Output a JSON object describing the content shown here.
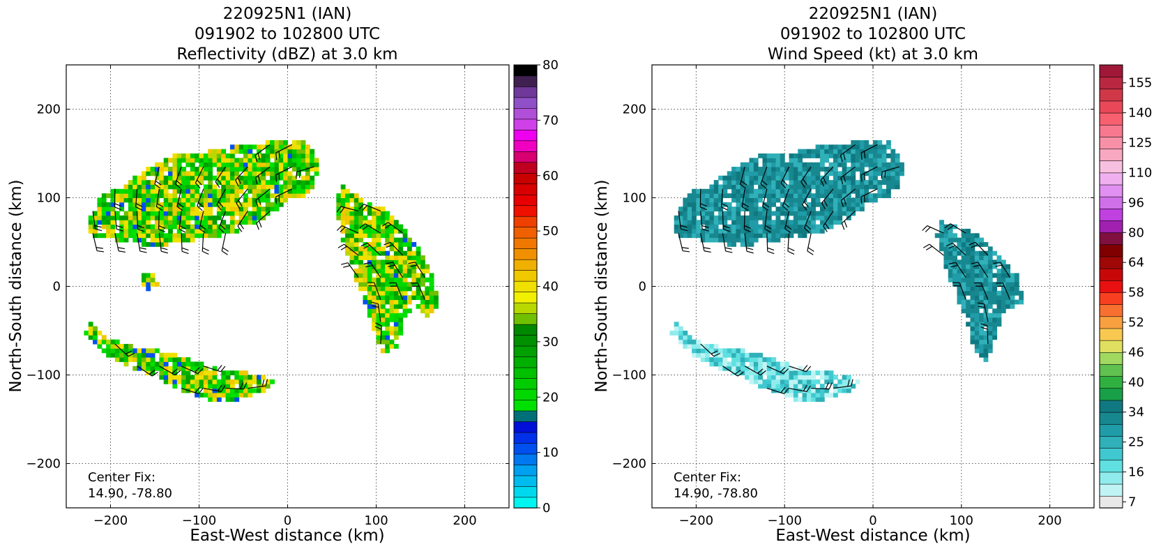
{
  "figure": {
    "panels": [
      {
        "title_lines": [
          "220925N1 (IAN)",
          "091902 to 102800 UTC",
          "Reflectivity (dBZ) at 3.0 km"
        ],
        "xlabel": "East-West distance (km)",
        "ylabel": "North-South distance (km)",
        "center_fix_label": "Center Fix:",
        "center_fix_value": "14.90, -78.80"
      },
      {
        "title_lines": [
          "220925N1 (IAN)",
          "091902 to 102800 UTC",
          "Wind Speed (kt) at 3.0 km"
        ],
        "xlabel": "East-West distance (km)",
        "ylabel": "North-South distance (km)",
        "center_fix_label": "Center Fix:",
        "center_fix_value": "14.90, -78.80"
      }
    ]
  },
  "chart_data": [
    {
      "type": "heatmap",
      "title": "220925N1 (IAN) 091902 to 102800 UTC Reflectivity (dBZ) at 3.0 km",
      "xlabel": "East-West distance (km)",
      "ylabel": "North-South distance (km)",
      "xlim": [
        -250,
        250
      ],
      "ylim": [
        -250,
        250
      ],
      "xticks": [
        -200,
        -100,
        0,
        100,
        200
      ],
      "yticks": [
        -200,
        -100,
        0,
        100,
        200
      ],
      "grid": true,
      "colorbar": {
        "min": 0,
        "max": 80,
        "tick_values": [
          0,
          10,
          20,
          30,
          40,
          50,
          60,
          70,
          80
        ],
        "tick_labels": [
          "0",
          "10",
          "20",
          "30",
          "40",
          "50",
          "60",
          "70",
          "80"
        ],
        "colors": [
          "#00f5f0",
          "#00d8ee",
          "#00bcee",
          "#00a0f0",
          "#0078f0",
          "#0050f0",
          "#0030e8",
          "#0010d8",
          "#007078",
          "#00e000",
          "#00d800",
          "#00cc00",
          "#00c000",
          "#00b000",
          "#00a000",
          "#009000",
          "#008800",
          "#70c000",
          "#b8d800",
          "#f0f000",
          "#f0e000",
          "#f0c800",
          "#f0b000",
          "#f09000",
          "#f07800",
          "#f06000",
          "#f04000",
          "#f01000",
          "#e80000",
          "#d80000",
          "#c80000",
          "#c00020",
          "#d80070",
          "#f000c0",
          "#f000f0",
          "#d040e8",
          "#b050d8",
          "#9050c8",
          "#703898",
          "#402050",
          "#000000"
        ]
      },
      "regions": [
        {
          "name": "north band",
          "points": [
            [
              -225,
              75
            ],
            [
              -215,
              95
            ],
            [
              -205,
              110
            ],
            [
              -185,
              112
            ],
            [
              -170,
              125
            ],
            [
              -155,
              135
            ],
            [
              -130,
              148
            ],
            [
              -95,
              152
            ],
            [
              -60,
              158
            ],
            [
              -20,
              163
            ],
            [
              15,
              165
            ],
            [
              30,
              160
            ],
            [
              35,
              130
            ],
            [
              25,
              105
            ],
            [
              0,
              95
            ],
            [
              -30,
              75
            ],
            [
              -60,
              60
            ],
            [
              -90,
              55
            ],
            [
              -120,
              50
            ],
            [
              -150,
              45
            ],
            [
              -180,
              50
            ],
            [
              -210,
              55
            ],
            [
              -225,
              60
            ]
          ],
          "typical_dbz": 30
        },
        {
          "name": "eastern band",
          "points": [
            [
              60,
              115
            ],
            [
              75,
              105
            ],
            [
              90,
              95
            ],
            [
              105,
              90
            ],
            [
              120,
              80
            ],
            [
              135,
              60
            ],
            [
              150,
              40
            ],
            [
              165,
              10
            ],
            [
              170,
              -20
            ],
            [
              160,
              -35
            ],
            [
              145,
              -20
            ],
            [
              130,
              -40
            ],
            [
              125,
              -70
            ],
            [
              110,
              -80
            ],
            [
              100,
              -60
            ],
            [
              90,
              -25
            ],
            [
              80,
              0
            ],
            [
              70,
              30
            ],
            [
              60,
              60
            ],
            [
              55,
              90
            ]
          ],
          "typical_dbz": 28
        },
        {
          "name": "southwest band",
          "points": [
            [
              -225,
              -35
            ],
            [
              -210,
              -55
            ],
            [
              -185,
              -65
            ],
            [
              -160,
              -70
            ],
            [
              -130,
              -75
            ],
            [
              -100,
              -85
            ],
            [
              -70,
              -95
            ],
            [
              -40,
              -98
            ],
            [
              -15,
              -105
            ],
            [
              -25,
              -118
            ],
            [
              -55,
              -128
            ],
            [
              -90,
              -128
            ],
            [
              -120,
              -118
            ],
            [
              -150,
              -100
            ],
            [
              -180,
              -90
            ],
            [
              -210,
              -75
            ],
            [
              -228,
              -55
            ]
          ],
          "typical_dbz": 32
        },
        {
          "name": "small western cluster",
          "points": [
            [
              -165,
              15
            ],
            [
              -150,
              15
            ],
            [
              -145,
              0
            ],
            [
              -160,
              -5
            ],
            [
              -168,
              5
            ]
          ],
          "typical_dbz": 22
        }
      ]
    },
    {
      "type": "heatmap",
      "title": "220925N1 (IAN) 091902 to 102800 UTC Wind Speed (kt) at 3.0 km",
      "xlabel": "East-West distance (km)",
      "ylabel": "North-South distance (km)",
      "xlim": [
        -250,
        250
      ],
      "ylim": [
        -250,
        250
      ],
      "xticks": [
        -200,
        -100,
        0,
        100,
        200
      ],
      "yticks": [
        -200,
        -100,
        0,
        100,
        200
      ],
      "grid": true,
      "colorbar": {
        "tick_labels": [
          "7",
          "16",
          "25",
          "34",
          "40",
          "46",
          "52",
          "58",
          "64",
          "80",
          "96",
          "110",
          "125",
          "140",
          "155"
        ],
        "colors": [
          "#e8e8e8",
          "#c0f4f4",
          "#90ecec",
          "#60e0e0",
          "#40c8d0",
          "#30b0b8",
          "#209ca8",
          "#188890",
          "#107880",
          "#18a048",
          "#30b040",
          "#60c050",
          "#a0d860",
          "#e0e060",
          "#f8c850",
          "#f8a040",
          "#f87030",
          "#f84020",
          "#e81010",
          "#c80808",
          "#a00808",
          "#800000",
          "#801040",
          "#a020b0",
          "#c040e0",
          "#d070e8",
          "#e090f0",
          "#f0b0f0",
          "#f8c0e0",
          "#f8a8c0",
          "#f890a8",
          "#f87890",
          "#f86070",
          "#e84858",
          "#d03848",
          "#b82840",
          "#a01838"
        ]
      },
      "regions": [
        {
          "name": "north band",
          "points": [
            [
              -225,
              75
            ],
            [
              -215,
              95
            ],
            [
              -205,
              110
            ],
            [
              -185,
              112
            ],
            [
              -170,
              125
            ],
            [
              -155,
              135
            ],
            [
              -130,
              148
            ],
            [
              -95,
              152
            ],
            [
              -60,
              158
            ],
            [
              -20,
              163
            ],
            [
              15,
              165
            ],
            [
              30,
              160
            ],
            [
              35,
              130
            ],
            [
              25,
              105
            ],
            [
              0,
              95
            ],
            [
              -30,
              75
            ],
            [
              -60,
              60
            ],
            [
              -90,
              55
            ],
            [
              -120,
              50
            ],
            [
              -150,
              45
            ],
            [
              -180,
              50
            ],
            [
              -210,
              55
            ],
            [
              -225,
              60
            ]
          ],
          "typical_kt": 22
        },
        {
          "name": "eastern band",
          "points": [
            [
              75,
              75
            ],
            [
              90,
              70
            ],
            [
              105,
              65
            ],
            [
              120,
              60
            ],
            [
              135,
              45
            ],
            [
              150,
              30
            ],
            [
              165,
              10
            ],
            [
              170,
              -20
            ],
            [
              150,
              -25
            ],
            [
              140,
              -50
            ],
            [
              130,
              -85
            ],
            [
              115,
              -75
            ],
            [
              110,
              -50
            ],
            [
              100,
              -25
            ],
            [
              90,
              0
            ],
            [
              80,
              30
            ],
            [
              72,
              55
            ]
          ],
          "typical_kt": 24
        },
        {
          "name": "southwest band",
          "points": [
            [
              -225,
              -35
            ],
            [
              -210,
              -55
            ],
            [
              -185,
              -65
            ],
            [
              -160,
              -70
            ],
            [
              -130,
              -75
            ],
            [
              -100,
              -85
            ],
            [
              -70,
              -95
            ],
            [
              -40,
              -98
            ],
            [
              -15,
              -105
            ],
            [
              -25,
              -118
            ],
            [
              -55,
              -128
            ],
            [
              -90,
              -128
            ],
            [
              -120,
              -118
            ],
            [
              -150,
              -100
            ],
            [
              -180,
              -90
            ],
            [
              -210,
              -75
            ],
            [
              -228,
              -55
            ]
          ],
          "typical_kt": 12
        }
      ]
    }
  ]
}
